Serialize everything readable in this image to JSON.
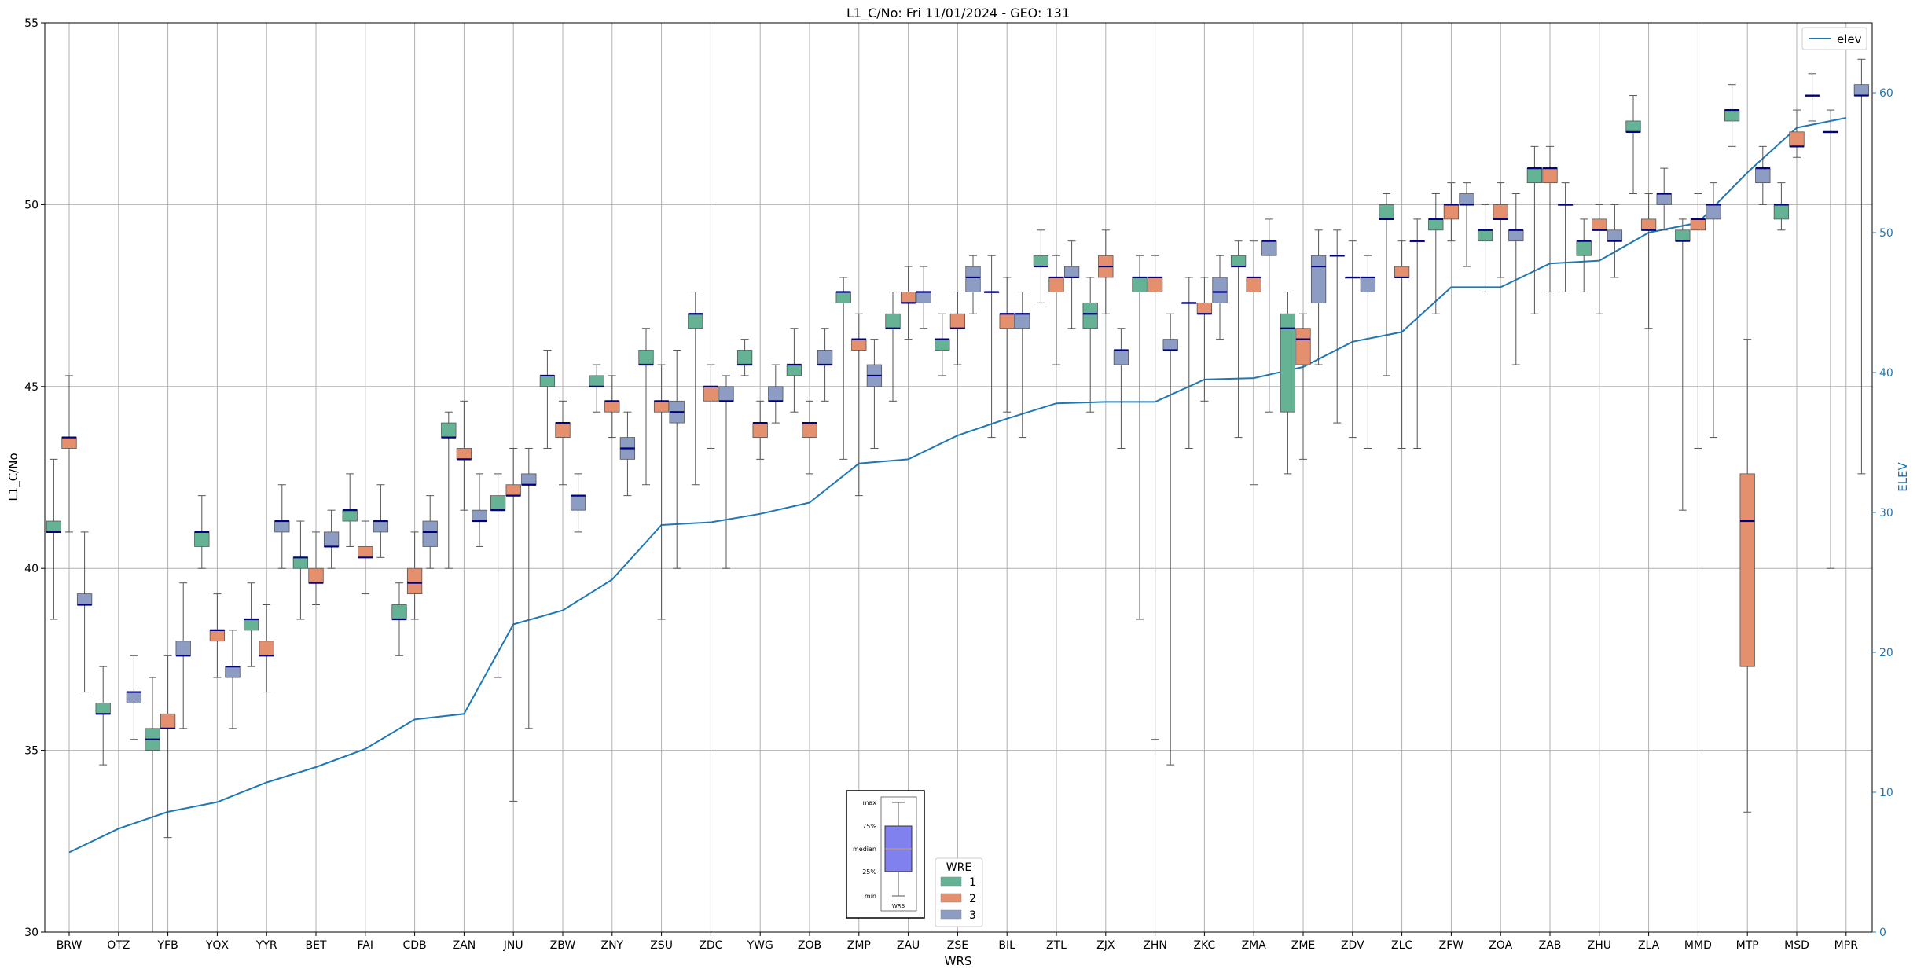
{
  "chart_data": {
    "type": "box",
    "title": "L1_C/No: Fri 11/01/2024 - GEO: 131",
    "xlabel": "WRS",
    "ylabel": "L1_C/No",
    "y2label": "ELEV",
    "ylim": [
      30,
      55
    ],
    "y2lim": [
      0,
      65
    ],
    "yticks": [
      "30",
      "35",
      "40",
      "45",
      "50",
      "55"
    ],
    "y2ticks": [
      "0",
      "10",
      "20",
      "30",
      "40",
      "50",
      "60"
    ],
    "grid": true,
    "colors": {
      "1": "#66b294",
      "2": "#e4906e",
      "3": "#8d9cc2",
      "median": "#000080",
      "elev": "#1f77b4"
    },
    "legend_elev": {
      "label": "elev",
      "position": "top-right"
    },
    "legend_wre": {
      "title": "WRE",
      "entries": [
        "1",
        "2",
        "3"
      ],
      "position": "bottom-center"
    },
    "inset_key": {
      "labels": [
        "max",
        "75%",
        "median",
        "25%",
        "min"
      ],
      "xlabel": "WRS"
    },
    "categories": [
      "BRW",
      "OTZ",
      "YFB",
      "YQX",
      "YYR",
      "BET",
      "FAI",
      "CDB",
      "ZAN",
      "JNU",
      "ZBW",
      "ZNY",
      "ZSU",
      "ZDC",
      "YWG",
      "ZOB",
      "ZMP",
      "ZAU",
      "ZSE",
      "BIL",
      "ZTL",
      "ZJX",
      "ZHN",
      "ZKC",
      "ZMA",
      "ZME",
      "ZDV",
      "ZLC",
      "ZFW",
      "ZOA",
      "ZAB",
      "ZHU",
      "ZLA",
      "MMD",
      "MTP",
      "MSD",
      "MPR"
    ],
    "elev": [
      5.7,
      7.4,
      8.6,
      9.3,
      10.7,
      11.8,
      13.1,
      15.2,
      15.6,
      22.0,
      23.0,
      25.2,
      29.1,
      29.3,
      29.9,
      30.7,
      33.5,
      33.8,
      35.5,
      36.7,
      37.8,
      37.9,
      37.9,
      39.5,
      39.6,
      40.4,
      42.2,
      42.9,
      46.1,
      46.1,
      47.8,
      48.0,
      50.0,
      50.7,
      54.3,
      57.5,
      58.2
    ],
    "boxes": [
      {
        "wrs": "BRW",
        "wre": 1,
        "min": 38.6,
        "q1": 41.0,
        "med": 41.0,
        "q3": 41.3,
        "max": 43.0
      },
      {
        "wrs": "BRW",
        "wre": 2,
        "min": 41.0,
        "q1": 43.3,
        "med": 43.6,
        "q3": 43.6,
        "max": 45.3
      },
      {
        "wrs": "BRW",
        "wre": 3,
        "min": 36.6,
        "q1": 39.0,
        "med": 39.0,
        "q3": 39.3,
        "max": 41.0
      },
      {
        "wrs": "OTZ",
        "wre": 1,
        "min": 34.6,
        "q1": 36.0,
        "med": 36.0,
        "q3": 36.3,
        "max": 37.3
      },
      {
        "wrs": "OTZ",
        "wre": 3,
        "min": 35.3,
        "q1": 36.3,
        "med": 36.6,
        "q3": 36.6,
        "max": 37.6
      },
      {
        "wrs": "YFB",
        "wre": 1,
        "min": 30.0,
        "q1": 35.0,
        "med": 35.3,
        "q3": 35.6,
        "max": 37.0
      },
      {
        "wrs": "YFB",
        "wre": 2,
        "min": 32.6,
        "q1": 35.6,
        "med": 35.6,
        "q3": 36.0,
        "max": 37.6
      },
      {
        "wrs": "YFB",
        "wre": 3,
        "min": 35.6,
        "q1": 37.6,
        "med": 37.6,
        "q3": 38.0,
        "max": 39.6
      },
      {
        "wrs": "YQX",
        "wre": 1,
        "min": 40.0,
        "q1": 40.6,
        "med": 41.0,
        "q3": 41.0,
        "max": 42.0
      },
      {
        "wrs": "YQX",
        "wre": 2,
        "min": 37.0,
        "q1": 38.0,
        "med": 38.3,
        "q3": 38.3,
        "max": 39.3
      },
      {
        "wrs": "YQX",
        "wre": 3,
        "min": 35.6,
        "q1": 37.0,
        "med": 37.3,
        "q3": 37.3,
        "max": 38.3
      },
      {
        "wrs": "YYR",
        "wre": 1,
        "min": 37.3,
        "q1": 38.3,
        "med": 38.6,
        "q3": 38.6,
        "max": 39.6
      },
      {
        "wrs": "YYR",
        "wre": 2,
        "min": 36.6,
        "q1": 37.6,
        "med": 37.6,
        "q3": 38.0,
        "max": 39.0
      },
      {
        "wrs": "YYR",
        "wre": 3,
        "min": 40.0,
        "q1": 41.0,
        "med": 41.3,
        "q3": 41.3,
        "max": 42.3
      },
      {
        "wrs": "BET",
        "wre": 1,
        "min": 38.6,
        "q1": 40.0,
        "med": 40.3,
        "q3": 40.3,
        "max": 41.3
      },
      {
        "wrs": "BET",
        "wre": 2,
        "min": 39.0,
        "q1": 39.6,
        "med": 39.6,
        "q3": 40.0,
        "max": 41.0
      },
      {
        "wrs": "BET",
        "wre": 3,
        "min": 40.0,
        "q1": 40.6,
        "med": 40.6,
        "q3": 41.0,
        "max": 41.6
      },
      {
        "wrs": "FAI",
        "wre": 1,
        "min": 40.6,
        "q1": 41.3,
        "med": 41.6,
        "q3": 41.6,
        "max": 42.6
      },
      {
        "wrs": "FAI",
        "wre": 2,
        "min": 39.3,
        "q1": 40.3,
        "med": 40.3,
        "q3": 40.6,
        "max": 41.3
      },
      {
        "wrs": "FAI",
        "wre": 3,
        "min": 40.3,
        "q1": 41.0,
        "med": 41.3,
        "q3": 41.3,
        "max": 42.3
      },
      {
        "wrs": "CDB",
        "wre": 1,
        "min": 37.6,
        "q1": 38.6,
        "med": 38.6,
        "q3": 39.0,
        "max": 39.6
      },
      {
        "wrs": "CDB",
        "wre": 2,
        "min": 38.6,
        "q1": 39.3,
        "med": 39.6,
        "q3": 40.0,
        "max": 41.0
      },
      {
        "wrs": "CDB",
        "wre": 3,
        "min": 40.0,
        "q1": 40.6,
        "med": 41.0,
        "q3": 41.3,
        "max": 42.0
      },
      {
        "wrs": "ZAN",
        "wre": 1,
        "min": 40.0,
        "q1": 43.6,
        "med": 43.6,
        "q3": 44.0,
        "max": 44.3
      },
      {
        "wrs": "ZAN",
        "wre": 2,
        "min": 41.6,
        "q1": 43.0,
        "med": 43.0,
        "q3": 43.3,
        "max": 44.6
      },
      {
        "wrs": "ZAN",
        "wre": 3,
        "min": 40.6,
        "q1": 41.3,
        "med": 41.3,
        "q3": 41.6,
        "max": 42.6
      },
      {
        "wrs": "JNU",
        "wre": 1,
        "min": 37.0,
        "q1": 41.6,
        "med": 41.6,
        "q3": 42.0,
        "max": 42.6
      },
      {
        "wrs": "JNU",
        "wre": 2,
        "min": 33.6,
        "q1": 42.0,
        "med": 42.0,
        "q3": 42.3,
        "max": 43.3
      },
      {
        "wrs": "JNU",
        "wre": 3,
        "min": 35.6,
        "q1": 42.3,
        "med": 42.3,
        "q3": 42.6,
        "max": 43.3
      },
      {
        "wrs": "ZBW",
        "wre": 1,
        "min": 43.3,
        "q1": 45.0,
        "med": 45.3,
        "q3": 45.3,
        "max": 46.0
      },
      {
        "wrs": "ZBW",
        "wre": 2,
        "min": 42.3,
        "q1": 43.6,
        "med": 44.0,
        "q3": 44.0,
        "max": 44.6
      },
      {
        "wrs": "ZBW",
        "wre": 3,
        "min": 41.0,
        "q1": 41.6,
        "med": 42.0,
        "q3": 42.0,
        "max": 42.6
      },
      {
        "wrs": "ZNY",
        "wre": 1,
        "min": 44.3,
        "q1": 45.0,
        "med": 45.0,
        "q3": 45.3,
        "max": 45.6
      },
      {
        "wrs": "ZNY",
        "wre": 2,
        "min": 43.6,
        "q1": 44.3,
        "med": 44.6,
        "q3": 44.6,
        "max": 45.3
      },
      {
        "wrs": "ZNY",
        "wre": 3,
        "min": 42.0,
        "q1": 43.0,
        "med": 43.3,
        "q3": 43.6,
        "max": 44.3
      },
      {
        "wrs": "ZSU",
        "wre": 1,
        "min": 42.3,
        "q1": 45.6,
        "med": 45.6,
        "q3": 46.0,
        "max": 46.6
      },
      {
        "wrs": "ZSU",
        "wre": 2,
        "min": 38.6,
        "q1": 44.3,
        "med": 44.6,
        "q3": 44.6,
        "max": 45.6
      },
      {
        "wrs": "ZSU",
        "wre": 3,
        "min": 40.0,
        "q1": 44.0,
        "med": 44.3,
        "q3": 44.6,
        "max": 46.0
      },
      {
        "wrs": "ZDC",
        "wre": 1,
        "min": 42.3,
        "q1": 46.6,
        "med": 47.0,
        "q3": 47.0,
        "max": 47.6
      },
      {
        "wrs": "ZDC",
        "wre": 2,
        "min": 43.3,
        "q1": 44.6,
        "med": 45.0,
        "q3": 45.0,
        "max": 45.6
      },
      {
        "wrs": "ZDC",
        "wre": 3,
        "min": 40.0,
        "q1": 44.6,
        "med": 44.6,
        "q3": 45.0,
        "max": 45.3
      },
      {
        "wrs": "YWG",
        "wre": 1,
        "min": 45.3,
        "q1": 45.6,
        "med": 45.6,
        "q3": 46.0,
        "max": 46.3
      },
      {
        "wrs": "YWG",
        "wre": 2,
        "min": 43.0,
        "q1": 43.6,
        "med": 44.0,
        "q3": 44.0,
        "max": 44.6
      },
      {
        "wrs": "YWG",
        "wre": 3,
        "min": 44.0,
        "q1": 44.6,
        "med": 44.6,
        "q3": 45.0,
        "max": 45.6
      },
      {
        "wrs": "ZOB",
        "wre": 1,
        "min": 44.3,
        "q1": 45.3,
        "med": 45.6,
        "q3": 45.6,
        "max": 46.6
      },
      {
        "wrs": "ZOB",
        "wre": 2,
        "min": 42.6,
        "q1": 43.6,
        "med": 44.0,
        "q3": 44.0,
        "max": 44.6
      },
      {
        "wrs": "ZOB",
        "wre": 3,
        "min": 44.6,
        "q1": 45.6,
        "med": 45.6,
        "q3": 46.0,
        "max": 46.6
      },
      {
        "wrs": "ZMP",
        "wre": 1,
        "min": 43.0,
        "q1": 47.3,
        "med": 47.6,
        "q3": 47.6,
        "max": 48.0
      },
      {
        "wrs": "ZMP",
        "wre": 2,
        "min": 42.0,
        "q1": 46.0,
        "med": 46.3,
        "q3": 46.3,
        "max": 47.0
      },
      {
        "wrs": "ZMP",
        "wre": 3,
        "min": 43.3,
        "q1": 45.0,
        "med": 45.3,
        "q3": 45.6,
        "max": 46.3
      },
      {
        "wrs": "ZAU",
        "wre": 1,
        "min": 44.6,
        "q1": 46.6,
        "med": 46.6,
        "q3": 47.0,
        "max": 47.6
      },
      {
        "wrs": "ZAU",
        "wre": 2,
        "min": 46.3,
        "q1": 47.3,
        "med": 47.3,
        "q3": 47.6,
        "max": 48.3
      },
      {
        "wrs": "ZAU",
        "wre": 3,
        "min": 46.6,
        "q1": 47.3,
        "med": 47.6,
        "q3": 47.6,
        "max": 48.3
      },
      {
        "wrs": "ZSE",
        "wre": 1,
        "min": 45.3,
        "q1": 46.0,
        "med": 46.3,
        "q3": 46.3,
        "max": 47.0
      },
      {
        "wrs": "ZSE",
        "wre": 2,
        "min": 45.6,
        "q1": 46.6,
        "med": 46.6,
        "q3": 47.0,
        "max": 47.6
      },
      {
        "wrs": "ZSE",
        "wre": 3,
        "min": 47.0,
        "q1": 47.6,
        "med": 48.0,
        "q3": 48.3,
        "max": 48.6
      },
      {
        "wrs": "BIL",
        "wre": 1,
        "min": 43.6,
        "q1": 47.6,
        "med": 47.6,
        "q3": 47.6,
        "max": 48.6
      },
      {
        "wrs": "BIL",
        "wre": 2,
        "min": 44.3,
        "q1": 46.6,
        "med": 47.0,
        "q3": 47.0,
        "max": 48.0
      },
      {
        "wrs": "BIL",
        "wre": 3,
        "min": 43.6,
        "q1": 46.6,
        "med": 47.0,
        "q3": 47.0,
        "max": 47.6
      },
      {
        "wrs": "ZTL",
        "wre": 1,
        "min": 47.3,
        "q1": 48.3,
        "med": 48.3,
        "q3": 48.6,
        "max": 49.3
      },
      {
        "wrs": "ZTL",
        "wre": 2,
        "min": 45.6,
        "q1": 47.6,
        "med": 48.0,
        "q3": 48.0,
        "max": 48.6
      },
      {
        "wrs": "ZTL",
        "wre": 3,
        "min": 46.6,
        "q1": 48.0,
        "med": 48.0,
        "q3": 48.3,
        "max": 49.0
      },
      {
        "wrs": "ZJX",
        "wre": 1,
        "min": 44.3,
        "q1": 46.6,
        "med": 47.0,
        "q3": 47.3,
        "max": 48.0
      },
      {
        "wrs": "ZJX",
        "wre": 2,
        "min": 47.0,
        "q1": 48.0,
        "med": 48.3,
        "q3": 48.6,
        "max": 49.3
      },
      {
        "wrs": "ZJX",
        "wre": 3,
        "min": 43.3,
        "q1": 45.6,
        "med": 46.0,
        "q3": 46.0,
        "max": 46.6
      },
      {
        "wrs": "ZHN",
        "wre": 1,
        "min": 38.6,
        "q1": 47.6,
        "med": 48.0,
        "q3": 48.0,
        "max": 48.6
      },
      {
        "wrs": "ZHN",
        "wre": 2,
        "min": 35.3,
        "q1": 47.6,
        "med": 48.0,
        "q3": 48.0,
        "max": 48.6
      },
      {
        "wrs": "ZHN",
        "wre": 3,
        "min": 34.6,
        "q1": 46.0,
        "med": 46.0,
        "q3": 46.3,
        "max": 47.0
      },
      {
        "wrs": "ZKC",
        "wre": 1,
        "min": 43.3,
        "q1": 47.3,
        "med": 47.3,
        "q3": 47.3,
        "max": 48.0
      },
      {
        "wrs": "ZKC",
        "wre": 2,
        "min": 44.6,
        "q1": 47.0,
        "med": 47.0,
        "q3": 47.3,
        "max": 48.0
      },
      {
        "wrs": "ZKC",
        "wre": 3,
        "min": 46.3,
        "q1": 47.3,
        "med": 47.6,
        "q3": 48.0,
        "max": 48.6
      },
      {
        "wrs": "ZMA",
        "wre": 1,
        "min": 43.6,
        "q1": 48.3,
        "med": 48.3,
        "q3": 48.6,
        "max": 49.0
      },
      {
        "wrs": "ZMA",
        "wre": 2,
        "min": 42.3,
        "q1": 47.6,
        "med": 48.0,
        "q3": 48.0,
        "max": 49.0
      },
      {
        "wrs": "ZMA",
        "wre": 3,
        "min": 44.3,
        "q1": 48.6,
        "med": 49.0,
        "q3": 49.0,
        "max": 49.6
      },
      {
        "wrs": "ZME",
        "wre": 1,
        "min": 42.6,
        "q1": 44.3,
        "med": 46.6,
        "q3": 47.0,
        "max": 47.6
      },
      {
        "wrs": "ZME",
        "wre": 2,
        "min": 43.0,
        "q1": 45.6,
        "med": 46.3,
        "q3": 46.6,
        "max": 47.0
      },
      {
        "wrs": "ZME",
        "wre": 3,
        "min": 45.6,
        "q1": 47.3,
        "med": 48.3,
        "q3": 48.6,
        "max": 49.3
      },
      {
        "wrs": "ZDV",
        "wre": 1,
        "min": 44.0,
        "q1": 48.6,
        "med": 48.6,
        "q3": 48.6,
        "max": 49.3
      },
      {
        "wrs": "ZDV",
        "wre": 2,
        "min": 43.6,
        "q1": 48.0,
        "med": 48.0,
        "q3": 48.0,
        "max": 49.0
      },
      {
        "wrs": "ZDV",
        "wre": 3,
        "min": 43.3,
        "q1": 47.6,
        "med": 48.0,
        "q3": 48.0,
        "max": 48.6
      },
      {
        "wrs": "ZLC",
        "wre": 1,
        "min": 45.3,
        "q1": 49.6,
        "med": 49.6,
        "q3": 50.0,
        "max": 50.3
      },
      {
        "wrs": "ZLC",
        "wre": 2,
        "min": 43.3,
        "q1": 48.0,
        "med": 48.0,
        "q3": 48.3,
        "max": 49.0
      },
      {
        "wrs": "ZLC",
        "wre": 3,
        "min": 43.3,
        "q1": 49.0,
        "med": 49.0,
        "q3": 49.0,
        "max": 49.6
      },
      {
        "wrs": "ZFW",
        "wre": 1,
        "min": 47.0,
        "q1": 49.3,
        "med": 49.6,
        "q3": 49.6,
        "max": 50.3
      },
      {
        "wrs": "ZFW",
        "wre": 2,
        "min": 49.0,
        "q1": 49.6,
        "med": 50.0,
        "q3": 50.0,
        "max": 50.6
      },
      {
        "wrs": "ZFW",
        "wre": 3,
        "min": 48.3,
        "q1": 50.0,
        "med": 50.0,
        "q3": 50.3,
        "max": 50.6
      },
      {
        "wrs": "ZOA",
        "wre": 1,
        "min": 47.6,
        "q1": 49.0,
        "med": 49.3,
        "q3": 49.3,
        "max": 50.0
      },
      {
        "wrs": "ZOA",
        "wre": 2,
        "min": 48.0,
        "q1": 49.6,
        "med": 49.6,
        "q3": 50.0,
        "max": 50.6
      },
      {
        "wrs": "ZOA",
        "wre": 3,
        "min": 45.6,
        "q1": 49.0,
        "med": 49.3,
        "q3": 49.3,
        "max": 50.3
      },
      {
        "wrs": "ZAB",
        "wre": 1,
        "min": 47.0,
        "q1": 50.6,
        "med": 51.0,
        "q3": 51.0,
        "max": 51.6
      },
      {
        "wrs": "ZAB",
        "wre": 2,
        "min": 47.6,
        "q1": 50.6,
        "med": 51.0,
        "q3": 51.0,
        "max": 51.6
      },
      {
        "wrs": "ZAB",
        "wre": 3,
        "min": 47.6,
        "q1": 50.0,
        "med": 50.0,
        "q3": 50.0,
        "max": 50.6
      },
      {
        "wrs": "ZHU",
        "wre": 1,
        "min": 47.6,
        "q1": 48.6,
        "med": 49.0,
        "q3": 49.0,
        "max": 49.6
      },
      {
        "wrs": "ZHU",
        "wre": 2,
        "min": 47.0,
        "q1": 49.3,
        "med": 49.3,
        "q3": 49.6,
        "max": 50.0
      },
      {
        "wrs": "ZHU",
        "wre": 3,
        "min": 48.0,
        "q1": 49.0,
        "med": 49.0,
        "q3": 49.3,
        "max": 50.0
      },
      {
        "wrs": "ZLA",
        "wre": 1,
        "min": 50.3,
        "q1": 52.0,
        "med": 52.0,
        "q3": 52.3,
        "max": 53.0
      },
      {
        "wrs": "ZLA",
        "wre": 2,
        "min": 46.6,
        "q1": 49.3,
        "med": 49.3,
        "q3": 49.6,
        "max": 50.3
      },
      {
        "wrs": "ZLA",
        "wre": 3,
        "min": 49.3,
        "q1": 50.0,
        "med": 50.3,
        "q3": 50.3,
        "max": 51.0
      },
      {
        "wrs": "MMD",
        "wre": 1,
        "min": 41.6,
        "q1": 49.0,
        "med": 49.0,
        "q3": 49.3,
        "max": 49.6
      },
      {
        "wrs": "MMD",
        "wre": 2,
        "min": 43.3,
        "q1": 49.3,
        "med": 49.6,
        "q3": 49.6,
        "max": 50.3
      },
      {
        "wrs": "MMD",
        "wre": 3,
        "min": 43.6,
        "q1": 49.6,
        "med": 50.0,
        "q3": 50.0,
        "max": 50.6
      },
      {
        "wrs": "MTP",
        "wre": 1,
        "min": 51.6,
        "q1": 52.3,
        "med": 52.6,
        "q3": 52.6,
        "max": 53.3
      },
      {
        "wrs": "MTP",
        "wre": 2,
        "min": 33.3,
        "q1": 37.3,
        "med": 41.3,
        "q3": 42.6,
        "max": 46.3
      },
      {
        "wrs": "MTP",
        "wre": 3,
        "min": 50.0,
        "q1": 50.6,
        "med": 51.0,
        "q3": 51.0,
        "max": 51.6
      },
      {
        "wrs": "MSD",
        "wre": 1,
        "min": 49.3,
        "q1": 49.6,
        "med": 50.0,
        "q3": 50.0,
        "max": 50.6
      },
      {
        "wrs": "MSD",
        "wre": 2,
        "min": 51.3,
        "q1": 51.6,
        "med": 51.6,
        "q3": 52.0,
        "max": 52.6
      },
      {
        "wrs": "MSD",
        "wre": 3,
        "min": 52.3,
        "q1": 53.0,
        "med": 53.0,
        "q3": 53.0,
        "max": 53.6
      },
      {
        "wrs": "MPR",
        "wre": 1,
        "min": 40.0,
        "q1": 52.0,
        "med": 52.0,
        "q3": 52.0,
        "max": 52.6
      },
      {
        "wrs": "MPR",
        "wre": 3,
        "min": 42.6,
        "q1": 53.0,
        "med": 53.0,
        "q3": 53.3,
        "max": 54.0
      }
    ]
  }
}
